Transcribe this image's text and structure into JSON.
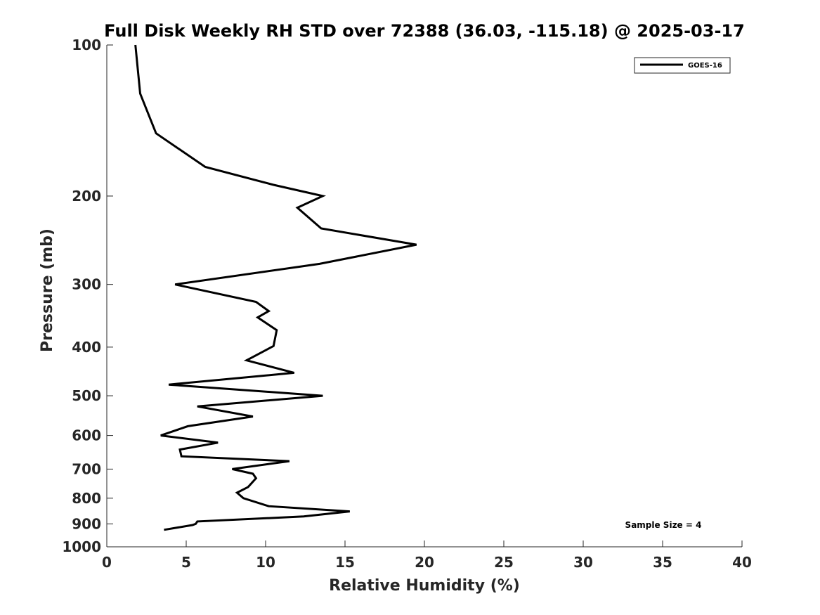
{
  "chart_data": {
    "type": "line",
    "title": "Full Disk Weekly RH STD over 72388 (36.03, -115.18) @ 2025-03-17",
    "xlabel": "Relative Humidity (%)",
    "ylabel": "Pressure (mb)",
    "xlim": [
      0,
      40
    ],
    "ylim": [
      100,
      1000
    ],
    "y_scale": "log",
    "y_reversed": true,
    "grid": false,
    "legend_position": "top-right",
    "x_ticks": [
      0,
      5,
      10,
      15,
      20,
      25,
      30,
      35,
      40
    ],
    "x_tick_labels": [
      "0",
      "5",
      "10",
      "15",
      "20",
      "25",
      "30",
      "35",
      "40"
    ],
    "y_ticks": [
      100,
      200,
      300,
      400,
      500,
      600,
      700,
      800,
      900,
      1000
    ],
    "y_tick_labels": [
      "100",
      "200",
      "300",
      "400",
      "500",
      "600",
      "700",
      "800",
      "900",
      "1000"
    ],
    "annotation": "Sample Size = 4",
    "series": [
      {
        "name": "GOES-16",
        "color": "#000000",
        "points": [
          [
            1.8,
            100
          ],
          [
            2.1,
            125
          ],
          [
            3.1,
            150
          ],
          [
            6.2,
            175
          ],
          [
            10.5,
            190
          ],
          [
            13.6,
            200
          ],
          [
            12.0,
            211
          ],
          [
            13.5,
            232
          ],
          [
            19.5,
            250
          ],
          [
            13.4,
            273
          ],
          [
            4.3,
            300
          ],
          [
            9.4,
            325
          ],
          [
            10.2,
            339
          ],
          [
            9.5,
            349
          ],
          [
            10.7,
            370
          ],
          [
            10.5,
            398
          ],
          [
            8.8,
            425
          ],
          [
            11.8,
            450
          ],
          [
            3.9,
            475
          ],
          [
            13.6,
            500
          ],
          [
            5.7,
            525
          ],
          [
            9.2,
            550
          ],
          [
            5.1,
            575
          ],
          [
            3.4,
            600
          ],
          [
            7.0,
            620
          ],
          [
            4.6,
            640
          ],
          [
            4.7,
            660
          ],
          [
            11.5,
            675
          ],
          [
            7.9,
            700
          ],
          [
            9.2,
            715
          ],
          [
            9.4,
            730
          ],
          [
            8.9,
            760
          ],
          [
            8.2,
            780
          ],
          [
            8.6,
            800
          ],
          [
            10.2,
            830
          ],
          [
            15.3,
            850
          ],
          [
            12.4,
            870
          ],
          [
            5.7,
            890
          ],
          [
            5.6,
            900
          ],
          [
            5.4,
            905
          ],
          [
            3.6,
            925
          ]
        ]
      }
    ]
  }
}
